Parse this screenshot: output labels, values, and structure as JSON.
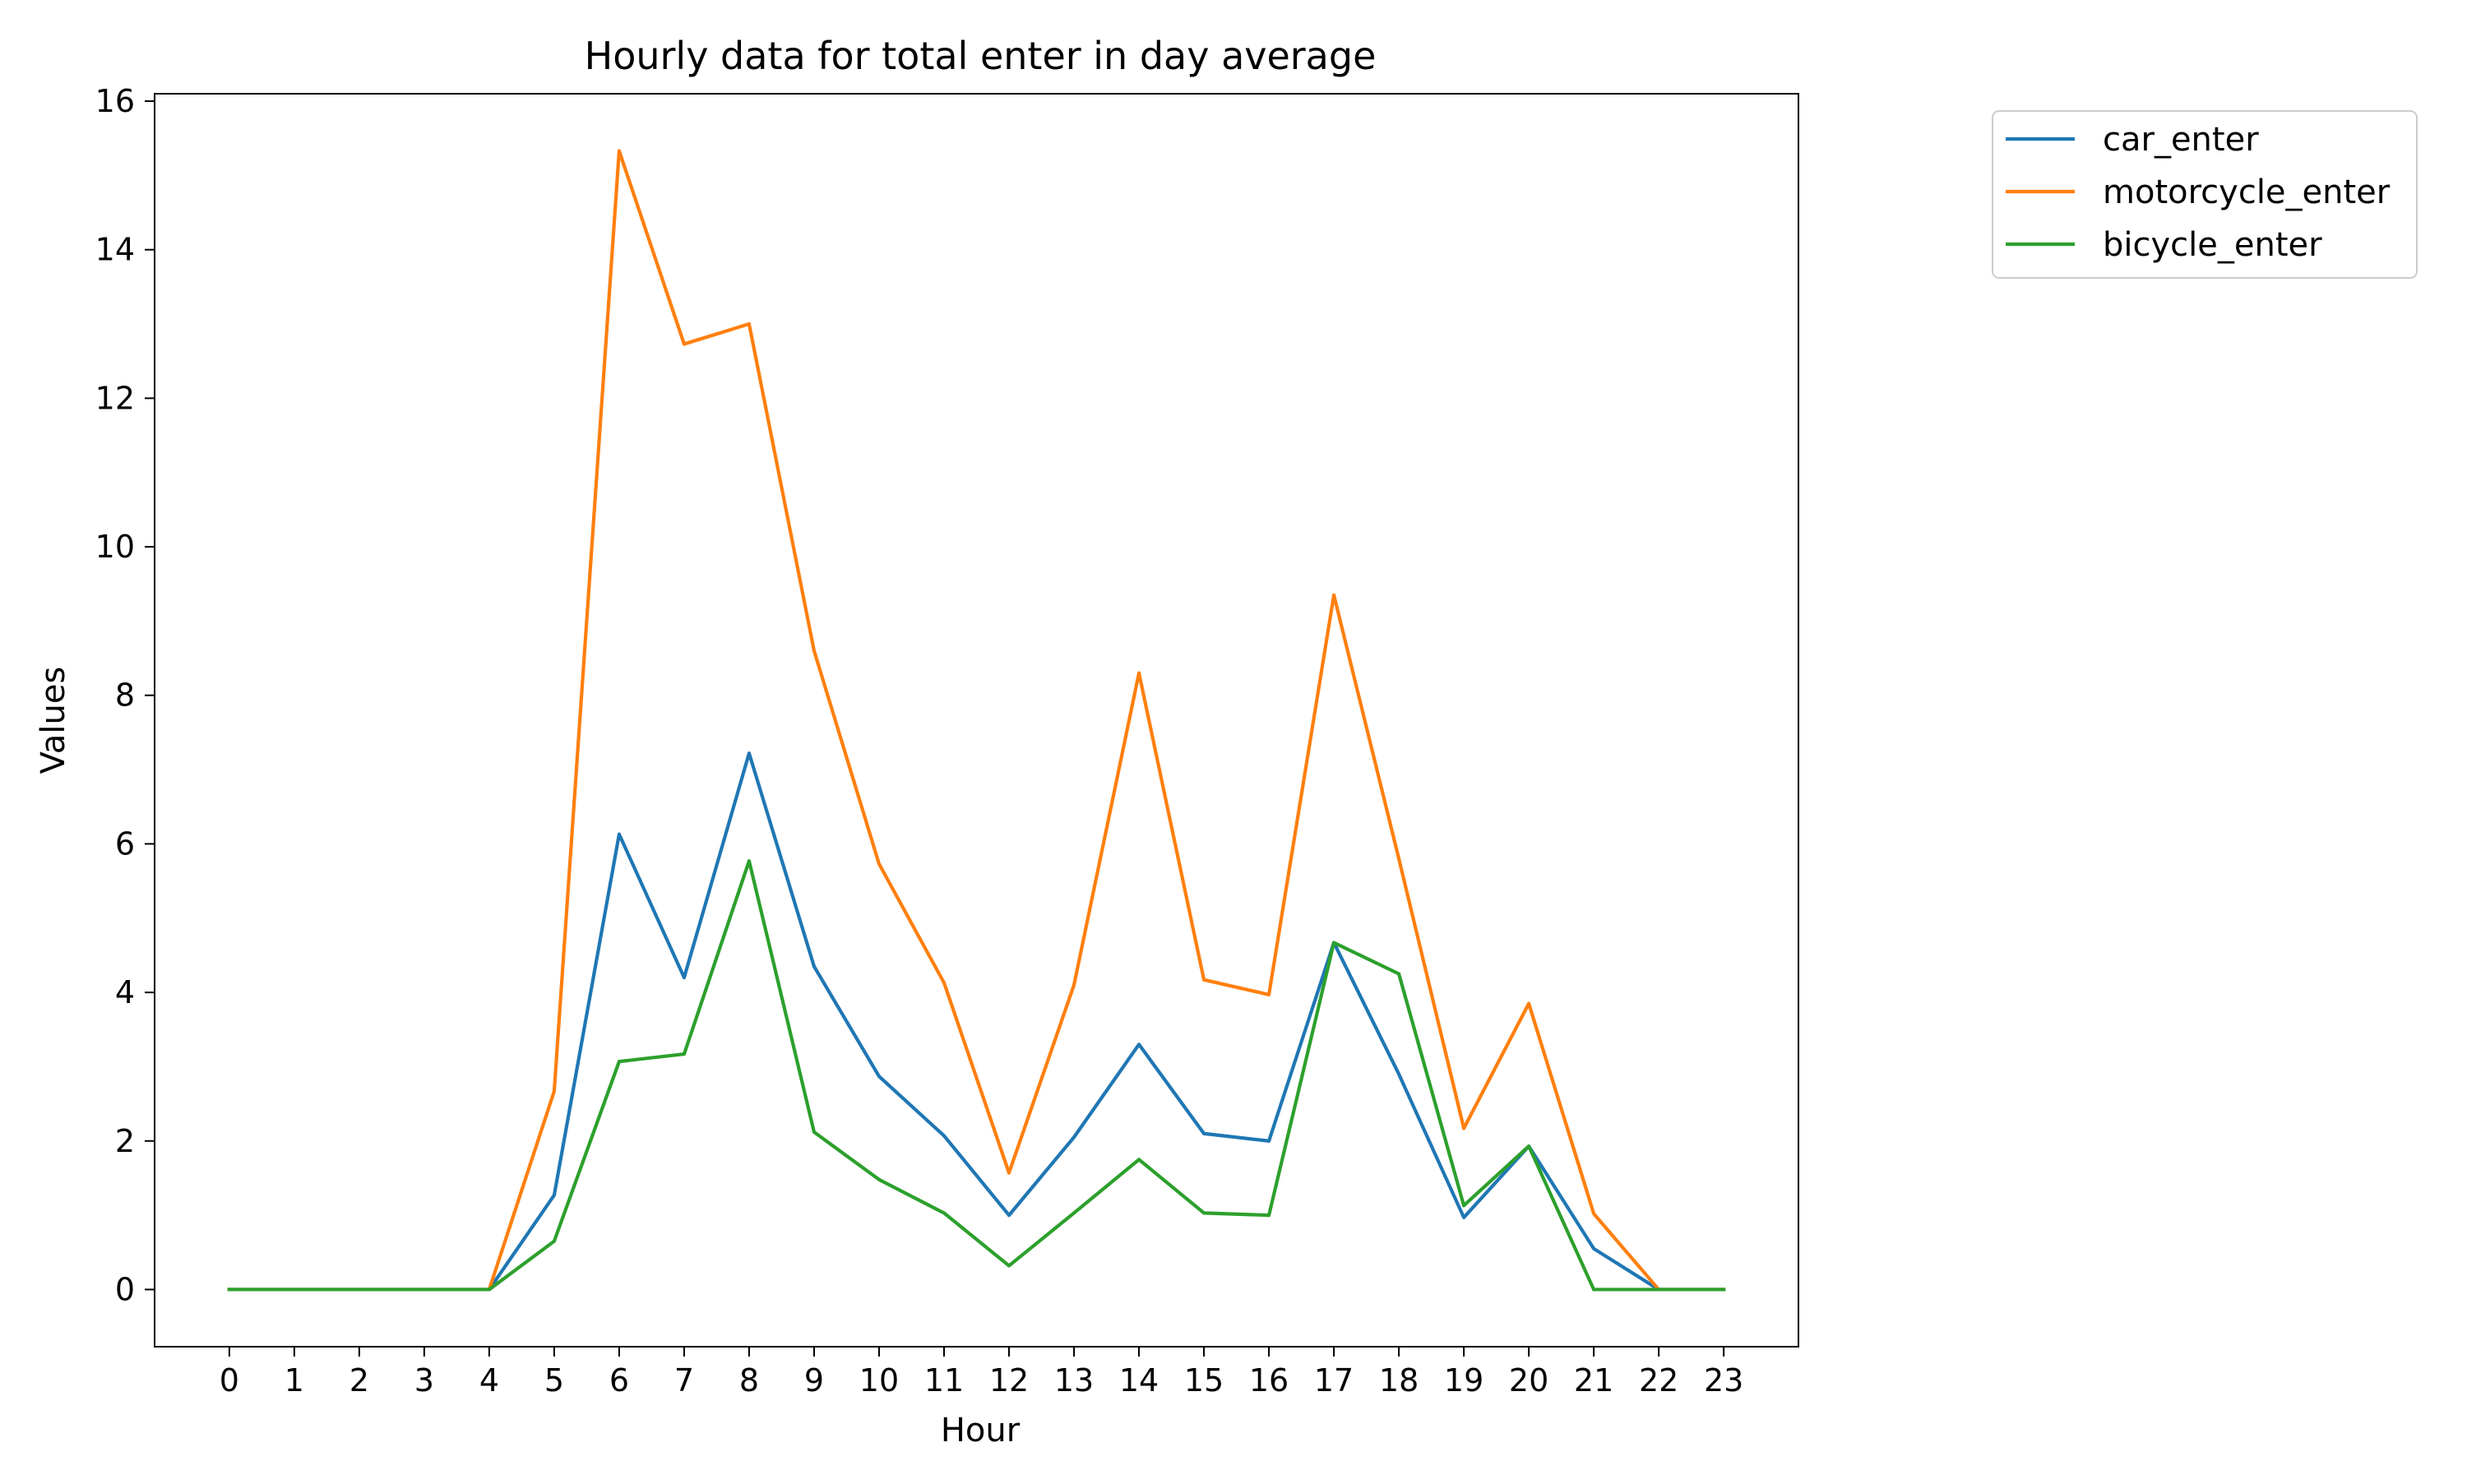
{
  "chart_data": {
    "type": "line",
    "title": "Hourly data for total enter in day average",
    "xlabel": "Hour",
    "ylabel": "Values",
    "x": [
      0,
      1,
      2,
      3,
      4,
      5,
      6,
      7,
      8,
      9,
      10,
      11,
      12,
      13,
      14,
      15,
      16,
      17,
      18,
      19,
      20,
      21,
      22,
      23
    ],
    "x_ticks": [
      "0",
      "1",
      "2",
      "3",
      "4",
      "5",
      "6",
      "7",
      "8",
      "9",
      "10",
      "11",
      "12",
      "13",
      "14",
      "15",
      "16",
      "17",
      "18",
      "19",
      "20",
      "21",
      "22",
      "23"
    ],
    "y_ticks": [
      "0",
      "2",
      "4",
      "6",
      "8",
      "10",
      "12",
      "14",
      "16"
    ],
    "xlim": [
      -1.15,
      24.15
    ],
    "ylim": [
      -0.77,
      16.1
    ],
    "grid": false,
    "legend_position": "outside-top-right",
    "series": [
      {
        "name": "car_enter",
        "color": "#1f77b4",
        "values": [
          0,
          0,
          0,
          0,
          0,
          1.27,
          6.13,
          4.2,
          7.22,
          4.35,
          2.87,
          2.07,
          1.0,
          2.05,
          3.3,
          2.1,
          2.0,
          4.67,
          2.9,
          0.97,
          1.93,
          0.55,
          0,
          0
        ]
      },
      {
        "name": "motorcycle_enter",
        "color": "#ff7f0e",
        "values": [
          0,
          0,
          0,
          0,
          0,
          2.67,
          15.33,
          12.73,
          13.0,
          8.6,
          5.73,
          4.13,
          1.57,
          4.1,
          8.3,
          4.17,
          3.97,
          9.35,
          5.8,
          2.17,
          3.85,
          1.02,
          0,
          0
        ]
      },
      {
        "name": "bicycle_enter",
        "color": "#2ca02c",
        "values": [
          0,
          0,
          0,
          0,
          0,
          0.65,
          3.07,
          3.17,
          5.77,
          2.12,
          1.48,
          1.03,
          0.32,
          1.03,
          1.75,
          1.03,
          1.0,
          4.67,
          4.25,
          1.13,
          1.93,
          0,
          0,
          0
        ]
      }
    ]
  }
}
